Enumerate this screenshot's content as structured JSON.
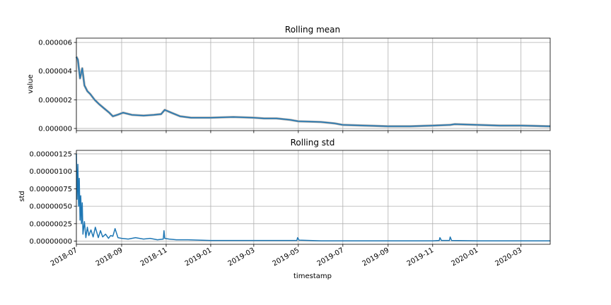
{
  "chart_data": [
    {
      "type": "line",
      "title": "Rolling mean",
      "xlabel": "",
      "ylabel": "value",
      "grid": true,
      "x_is_date": true,
      "xlim": [
        "2018-07-01",
        "2020-04-10"
      ],
      "ylim": [
        -1.5e-07,
        6.3e-06
      ],
      "y_ticks": [
        0,
        2e-06,
        4e-06,
        6e-06
      ],
      "y_tick_labels": [
        "0.000000",
        "0.000002",
        "0.000004",
        "0.000006"
      ],
      "series": [
        {
          "color": "#1f77b4",
          "x": [
            "2018-07-01",
            "2018-07-03",
            "2018-07-06",
            "2018-07-09",
            "2018-07-12",
            "2018-07-16",
            "2018-07-20",
            "2018-07-26",
            "2018-08-01",
            "2018-08-08",
            "2018-08-15",
            "2018-08-20",
            "2018-08-26",
            "2018-09-03",
            "2018-09-15",
            "2018-10-01",
            "2018-10-15",
            "2018-10-25",
            "2018-10-30",
            "2018-11-08",
            "2018-11-20",
            "2018-12-05",
            "2019-01-01",
            "2019-02-01",
            "2019-03-01",
            "2019-03-15",
            "2019-04-01",
            "2019-04-20",
            "2019-05-01",
            "2019-06-01",
            "2019-06-20",
            "2019-07-01",
            "2019-08-01",
            "2019-09-01",
            "2019-10-01",
            "2019-11-01",
            "2019-11-25",
            "2019-12-01",
            "2020-01-01",
            "2020-02-01",
            "2020-03-01",
            "2020-04-10"
          ],
          "y": [
            5e-06,
            4.8e-06,
            3.5e-06,
            4.2e-06,
            3e-06,
            2.6e-06,
            2.4e-06,
            2e-06,
            1.7e-06,
            1.4e-06,
            1.1e-06,
            8.5e-07,
            9.5e-07,
            1.1e-06,
            9.5e-07,
            9e-07,
            9.5e-07,
            1e-06,
            1.3e-06,
            1.1e-06,
            8.5e-07,
            7.5e-07,
            7.5e-07,
            8e-07,
            7.5e-07,
            7e-07,
            7e-07,
            6e-07,
            5e-07,
            4.5e-07,
            3.5e-07,
            2.5e-07,
            2e-07,
            1.5e-07,
            1.5e-07,
            2e-07,
            2.5e-07,
            3e-07,
            2.5e-07,
            2e-07,
            2e-07,
            1.5e-07
          ]
        }
      ]
    },
    {
      "type": "line",
      "title": "Rolling std",
      "xlabel": "timestamp",
      "ylabel": "std",
      "grid": true,
      "x_is_date": true,
      "xlim": [
        "2018-07-01",
        "2020-04-10"
      ],
      "ylim": [
        -4.5e-08,
        1.3e-06
      ],
      "y_ticks": [
        0,
        2.5e-07,
        5e-07,
        7.5e-07,
        1e-06,
        1.25e-06
      ],
      "y_tick_labels": [
        "0.00000000",
        "0.00000025",
        "0.00000050",
        "0.00000075",
        "0.00000100",
        "0.00000125"
      ],
      "x_ticks": [
        "2018-07-01",
        "2018-09-01",
        "2018-11-01",
        "2019-01-01",
        "2019-03-01",
        "2019-05-01",
        "2019-07-01",
        "2019-09-01",
        "2019-11-01",
        "2020-01-01",
        "2020-03-01"
      ],
      "x_tick_labels": [
        "2018-07",
        "2018-09",
        "2018-11",
        "2019-01",
        "2019-03",
        "2019-05",
        "2019-07",
        "2019-09",
        "2019-11",
        "2020-01",
        "2020-03"
      ],
      "series": [
        {
          "color": "#1f77b4",
          "x": [
            "2018-07-01",
            "2018-07-02",
            "2018-07-03",
            "2018-07-04",
            "2018-07-05",
            "2018-07-06",
            "2018-07-07",
            "2018-07-08",
            "2018-07-09",
            "2018-07-10",
            "2018-07-12",
            "2018-07-14",
            "2018-07-16",
            "2018-07-18",
            "2018-07-21",
            "2018-07-24",
            "2018-07-27",
            "2018-07-31",
            "2018-08-03",
            "2018-08-06",
            "2018-08-10",
            "2018-08-14",
            "2018-08-17",
            "2018-08-20",
            "2018-08-23",
            "2018-08-27",
            "2018-09-01",
            "2018-09-10",
            "2018-09-20",
            "2018-10-01",
            "2018-10-10",
            "2018-10-20",
            "2018-10-28",
            "2018-10-29",
            "2018-10-30",
            "2018-11-05",
            "2018-11-15",
            "2018-12-01",
            "2019-01-01",
            "2019-02-01",
            "2019-03-01",
            "2019-04-01",
            "2019-04-29",
            "2019-04-30",
            "2019-05-02",
            "2019-06-01",
            "2019-07-01",
            "2019-08-01",
            "2019-09-01",
            "2019-10-01",
            "2019-11-01",
            "2019-11-10",
            "2019-11-11",
            "2019-11-13",
            "2019-11-24",
            "2019-11-25",
            "2019-11-27",
            "2020-01-01",
            "2020-02-01",
            "2020-03-01",
            "2020-04-10"
          ],
          "y": [
            1.25e-06,
            6e-07,
            1.1e-06,
            5e-07,
            9e-07,
            3e-07,
            6.5e-07,
            2.5e-07,
            5.5e-07,
            1e-07,
            2.8e-07,
            5e-08,
            2e-07,
            8e-08,
            1.6e-07,
            6e-08,
            2e-07,
            5e-08,
            1.5e-07,
            6e-08,
            1e-07,
            4e-08,
            8e-08,
            7e-08,
            1.8e-07,
            5e-08,
            4e-08,
            3e-08,
            5e-08,
            3e-08,
            4e-08,
            2e-08,
            3e-08,
            1.5e-07,
            4e-08,
            3e-08,
            2e-08,
            2e-08,
            1e-08,
            1e-08,
            1e-08,
            1e-08,
            1e-08,
            5e-08,
            1.5e-08,
            5e-09,
            5e-09,
            5e-09,
            5e-09,
            5e-09,
            5e-09,
            1e-08,
            5e-08,
            1e-08,
            1e-08,
            6e-08,
            1e-08,
            5e-09,
            5e-09,
            5e-09,
            5e-09
          ]
        }
      ]
    }
  ]
}
